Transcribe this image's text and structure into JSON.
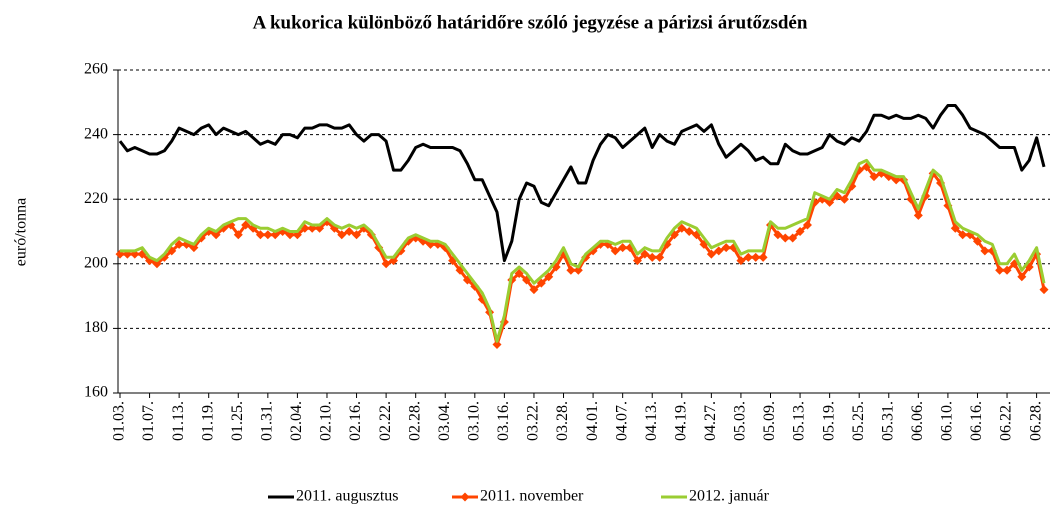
{
  "chart_data": {
    "type": "line",
    "title": "A kukorica különböző határidőre szóló jegyzése a párizsi árutőzsdén",
    "y_label": "euró/tonna",
    "categories": [
      "01.03.",
      null,
      null,
      null,
      "01.07.",
      null,
      null,
      null,
      "01.13.",
      null,
      null,
      null,
      "01.19.",
      null,
      null,
      null,
      "01.25.",
      null,
      null,
      null,
      "01.31.",
      null,
      null,
      null,
      "02.04.",
      null,
      null,
      null,
      "02.10.",
      null,
      null,
      null,
      "02.16.",
      null,
      null,
      null,
      "02.22.",
      null,
      null,
      null,
      "02.28.",
      null,
      null,
      null,
      "03.04.",
      null,
      null,
      null,
      "03.10.",
      null,
      null,
      null,
      "03.16.",
      null,
      null,
      null,
      "03.22.",
      null,
      null,
      null,
      "03.28.",
      null,
      null,
      null,
      "04.01.",
      null,
      null,
      null,
      "04.07.",
      null,
      null,
      null,
      "04.13.",
      null,
      null,
      null,
      "04.19.",
      null,
      null,
      null,
      "04.27.",
      null,
      null,
      null,
      "05.03.",
      null,
      null,
      null,
      "05.09.",
      null,
      null,
      null,
      "05.13.",
      null,
      null,
      null,
      "05.19.",
      null,
      null,
      null,
      "05.25.",
      null,
      null,
      null,
      "05.31.",
      null,
      null,
      null,
      "06.06.",
      null,
      null,
      null,
      "06.10.",
      null,
      null,
      null,
      "06.16.",
      null,
      null,
      null,
      "06.22.",
      null,
      null,
      null,
      "06.28.",
      null
    ],
    "series": [
      {
        "name": "2011. augusztus",
        "color": "#000000",
        "marker": false,
        "values": [
          238,
          235,
          236,
          235,
          234,
          234,
          235,
          238,
          242,
          241,
          240,
          242,
          243,
          240,
          242,
          241,
          240,
          241,
          239,
          237,
          238,
          237,
          240,
          240,
          239,
          242,
          242,
          243,
          243,
          242,
          242,
          243,
          240,
          238,
          240,
          240,
          238,
          229,
          229,
          232,
          236,
          237,
          236,
          236,
          236,
          236,
          235,
          231,
          226,
          226,
          221,
          216,
          201,
          207,
          220,
          225,
          224,
          219,
          218,
          222,
          226,
          230,
          225,
          225,
          232,
          237,
          240,
          239,
          236,
          238,
          240,
          242,
          236,
          240,
          238,
          237,
          241,
          242,
          243,
          241,
          243,
          237,
          233,
          235,
          237,
          235,
          232,
          233,
          231,
          231,
          237,
          235,
          234,
          234,
          235,
          236,
          240,
          238,
          237,
          239,
          238,
          241,
          246,
          246,
          245,
          246,
          245,
          245,
          246,
          245,
          242,
          246,
          249,
          249,
          246,
          242,
          241,
          240,
          238,
          236,
          236,
          236,
          229,
          232,
          239,
          230
        ]
      },
      {
        "name": "2011. november",
        "color": "#ff4500",
        "marker": true,
        "values": [
          203,
          203,
          203,
          203,
          201,
          200,
          202,
          204,
          206,
          206,
          205,
          208,
          210,
          209,
          211,
          212,
          209,
          212,
          211,
          209,
          209,
          209,
          210,
          209,
          209,
          211,
          211,
          211,
          213,
          211,
          209,
          210,
          209,
          211,
          209,
          205,
          200,
          201,
          204,
          207,
          208,
          207,
          206,
          206,
          205,
          201,
          198,
          195,
          193,
          189,
          185,
          175,
          182,
          195,
          197,
          195,
          192,
          194,
          196,
          199,
          203,
          198,
          198,
          202,
          204,
          206,
          206,
          204,
          205,
          205,
          201,
          203,
          202,
          202,
          206,
          209,
          211,
          210,
          209,
          206,
          203,
          204,
          205,
          205,
          201,
          202,
          202,
          202,
          212,
          209,
          208,
          208,
          210,
          212,
          219,
          220,
          219,
          221,
          220,
          224,
          229,
          230,
          227,
          228,
          227,
          226,
          226,
          220,
          215,
          221,
          228,
          225,
          218,
          211,
          209,
          209,
          207,
          204,
          204,
          198,
          198,
          200,
          196,
          199,
          203,
          192
        ]
      },
      {
        "name": "2012. január",
        "color": "#9acd32",
        "marker": false,
        "values": [
          204,
          204,
          204,
          205,
          202,
          201,
          203,
          206,
          208,
          207,
          206,
          209,
          211,
          210,
          212,
          213,
          214,
          214,
          212,
          211,
          211,
          210,
          211,
          210,
          210,
          213,
          212,
          212,
          214,
          212,
          211,
          212,
          211,
          212,
          210,
          206,
          202,
          202,
          205,
          208,
          209,
          208,
          207,
          207,
          206,
          203,
          200,
          197,
          194,
          191,
          186,
          176,
          184,
          197,
          199,
          197,
          194,
          196,
          198,
          201,
          205,
          200,
          199,
          203,
          205,
          207,
          207,
          206,
          207,
          207,
          203,
          205,
          204,
          204,
          208,
          211,
          213,
          212,
          211,
          208,
          205,
          206,
          207,
          207,
          203,
          204,
          204,
          204,
          213,
          211,
          211,
          212,
          213,
          214,
          222,
          221,
          220,
          223,
          222,
          226,
          231,
          232,
          229,
          229,
          228,
          227,
          227,
          222,
          217,
          223,
          229,
          227,
          220,
          213,
          211,
          210,
          209,
          207,
          206,
          200,
          200,
          203,
          198,
          201,
          205,
          194
        ]
      }
    ],
    "ylim": [
      160,
      260
    ],
    "yticks": [
      160,
      180,
      200,
      220,
      240,
      260
    ],
    "grid": true,
    "legend": "bottom"
  }
}
